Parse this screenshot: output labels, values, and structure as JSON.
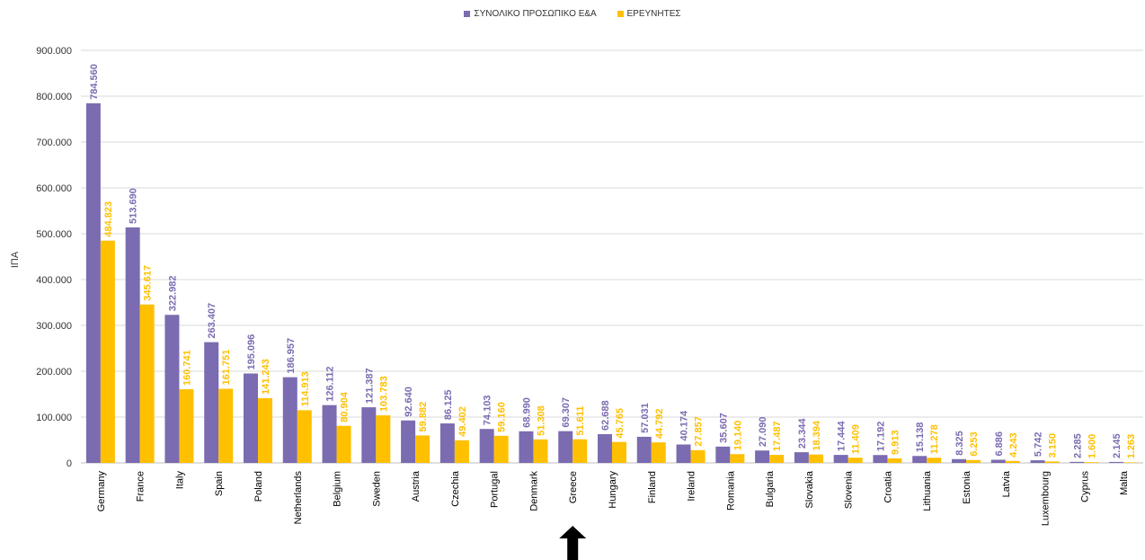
{
  "chart_data": {
    "type": "bar",
    "categories": [
      "Germany",
      "France",
      "Italy",
      "Spain",
      "Poland",
      "Netherlands",
      "Belgium",
      "Sweden",
      "Austria",
      "Czechia",
      "Portugal",
      "Denmark",
      "Greece",
      "Hungary",
      "Finland",
      "Ireland",
      "Romania",
      "Bulgaria",
      "Slovakia",
      "Slovenia",
      "Croatia",
      "Lithuania",
      "Estonia",
      "Latvia",
      "Luxembourg",
      "Cyprus",
      "Malta"
    ],
    "series": [
      {
        "name": "ΣΥΝΟΛΙΚΟ ΠΡΟΣΩΠΙΚΟ Ε&Α",
        "color": "#7b6bb0",
        "values": [
          784560,
          513690,
          322982,
          263407,
          195096,
          186957,
          126112,
          121387,
          92640,
          86125,
          74103,
          68990,
          69307,
          62688,
          57031,
          40174,
          35607,
          27090,
          23344,
          17444,
          17192,
          15138,
          8325,
          6886,
          5742,
          2285,
          2145
        ],
        "labels": [
          "784.560",
          "513.690",
          "322.982",
          "263.407",
          "195.096",
          "186.957",
          "126.112",
          "121.387",
          "92.640",
          "86.125",
          "74.103",
          "68.990",
          "69.307",
          "62.688",
          "57.031",
          "40.174",
          "35.607",
          "27.090",
          "23.344",
          "17.444",
          "17.192",
          "15.138",
          "8.325",
          "6.886",
          "5.742",
          "2.285",
          "2.145"
        ]
      },
      {
        "name": "ΕΡΕΥΝΗΤΕΣ",
        "color": "#ffc000",
        "values": [
          484823,
          345617,
          160741,
          161751,
          141243,
          114913,
          80904,
          103783,
          59882,
          49402,
          59160,
          51308,
          51611,
          45765,
          44792,
          27857,
          19140,
          17487,
          18394,
          11409,
          9913,
          11278,
          6253,
          4243,
          3150,
          1600,
          1263
        ],
        "labels": [
          "484.823",
          "345.617",
          "160.741",
          "161.751",
          "141.243",
          "114.913",
          "80.904",
          "103.783",
          "59.882",
          "49.402",
          "59.160",
          "51.308",
          "51.611",
          "45.765",
          "44.792",
          "27.857",
          "19.140",
          "17.487",
          "18.394",
          "11.409",
          "9.913",
          "11.278",
          "6.253",
          "4.243",
          "3.150",
          "1.600",
          "1.263"
        ]
      }
    ],
    "ylabel": "ΙΠΑ",
    "ylim": [
      0,
      900000
    ],
    "yticks": [
      0,
      100000,
      200000,
      300000,
      400000,
      500000,
      600000,
      700000,
      800000,
      900000
    ],
    "ytick_labels": [
      "0",
      "100.000",
      "200.000",
      "300.000",
      "400.000",
      "500.000",
      "600.000",
      "700.000",
      "800.000",
      "900.000"
    ],
    "grid": true,
    "legend_position": "top-center",
    "annotation": {
      "type": "arrow-up",
      "category": "Greece",
      "color": "#000000"
    }
  }
}
